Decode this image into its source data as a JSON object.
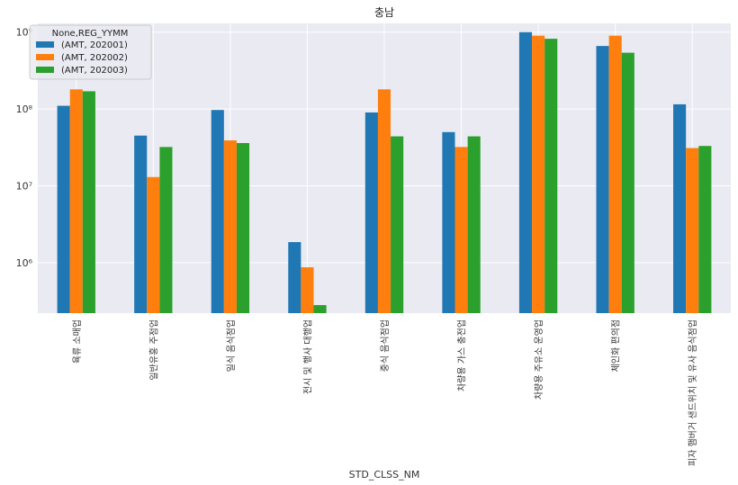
{
  "chart_data": {
    "type": "bar",
    "title": "충남",
    "xlabel": "STD_CLSS_NM",
    "ylabel": "",
    "yscale": "log",
    "ylim": [
      220000,
      1300000000
    ],
    "yticks": [
      {
        "value": 1000000,
        "label": "10⁶"
      },
      {
        "value": 10000000,
        "label": "10⁷"
      },
      {
        "value": 100000000,
        "label": "10⁸"
      },
      {
        "value": 1000000000,
        "label": "10⁹"
      }
    ],
    "grid": true,
    "legend": {
      "title": "None,REG_YYMM",
      "position": "top-left"
    },
    "categories": [
      "육류 소매업",
      "일반유흥 주점업",
      "일식 음식점업",
      "전시 및 행사 대행업",
      "중식 음식점업",
      "차량용 가스 충전업",
      "차량용 주유소 운영업",
      "체인화 편의점",
      "피자 햄버거 샌드위치 및 유사 음식점업"
    ],
    "series": [
      {
        "name": "(AMT, 202001)",
        "color": "#1f77b4",
        "values": [
          110000000,
          45000000,
          97000000,
          1850000,
          90000000,
          50000000,
          1000000000,
          660000000,
          115000000
        ]
      },
      {
        "name": "(AMT, 202002)",
        "color": "#ff7f0e",
        "values": [
          180000000,
          13000000,
          39000000,
          870000,
          180000000,
          32000000,
          900000000,
          900000000,
          31000000
        ]
      },
      {
        "name": "(AMT, 202003)",
        "color": "#2ca02c",
        "values": [
          170000000,
          32000000,
          36000000,
          280000,
          44000000,
          44000000,
          820000000,
          540000000,
          33000000
        ]
      }
    ]
  }
}
